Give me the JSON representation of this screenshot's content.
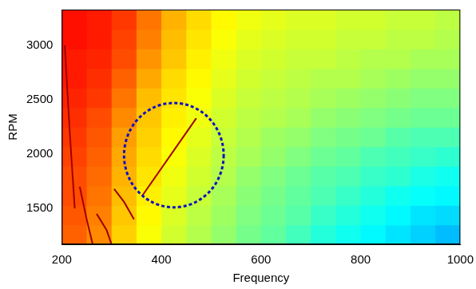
{
  "chart_data": {
    "type": "heatmap",
    "x_label": "Frequency",
    "y_label": "RPM",
    "xlim": [
      200,
      1000
    ],
    "ylim": [
      1170,
      3330
    ],
    "xticks": [
      200,
      400,
      600,
      800,
      1000
    ],
    "yticks": [
      1500,
      2000,
      2500,
      3000
    ],
    "grid": false,
    "tick_labels": true,
    "x_edges": [
      200,
      250,
      300,
      350,
      400,
      450,
      500,
      550,
      600,
      650,
      700,
      750,
      800,
      850,
      900,
      950,
      1000
    ],
    "y_edges": [
      1170,
      1350,
      1530,
      1710,
      1890,
      2070,
      2250,
      2430,
      2610,
      2790,
      2970,
      3150,
      3330
    ],
    "clim": [
      0,
      10
    ],
    "cells": [
      [
        7.8,
        7.4,
        6.7,
        6.2,
        5.8,
        5.5,
        5.2,
        4.9,
        4.7,
        4.4,
        4.1,
        3.9,
        3.7,
        3.5,
        3.3,
        3.1
      ],
      [
        7.9,
        7.5,
        6.8,
        6.3,
        5.9,
        5.6,
        5.3,
        5.0,
        4.8,
        4.6,
        4.3,
        4.1,
        3.9,
        3.7,
        3.5,
        3.4
      ],
      [
        8.0,
        7.6,
        6.9,
        6.4,
        6.0,
        5.7,
        5.4,
        5.1,
        4.9,
        4.7,
        4.5,
        4.3,
        4.1,
        3.9,
        3.8,
        3.7
      ],
      [
        8.0,
        7.7,
        7.0,
        6.5,
        6.1,
        5.8,
        5.5,
        5.2,
        5.0,
        4.8,
        4.6,
        4.5,
        4.3,
        4.2,
        4.0,
        3.9
      ],
      [
        8.1,
        7.8,
        7.1,
        6.6,
        6.2,
        5.9,
        5.6,
        5.4,
        5.2,
        5.0,
        4.8,
        4.7,
        4.5,
        4.4,
        4.3,
        4.2
      ],
      [
        8.2,
        7.9,
        7.2,
        6.7,
        6.3,
        6.0,
        5.7,
        5.5,
        5.3,
        5.2,
        5.0,
        4.9,
        4.8,
        4.6,
        4.5,
        4.5
      ],
      [
        8.3,
        8.0,
        7.4,
        6.8,
        6.4,
        6.1,
        5.8,
        5.6,
        5.5,
        5.4,
        5.2,
        5.1,
        5.0,
        4.9,
        4.8,
        4.8
      ],
      [
        8.4,
        8.2,
        7.6,
        6.9,
        6.5,
        6.2,
        5.9,
        5.7,
        5.6,
        5.5,
        5.4,
        5.3,
        5.2,
        5.1,
        5.0,
        5.0
      ],
      [
        8.5,
        8.3,
        7.8,
        7.1,
        6.6,
        6.3,
        6.0,
        5.8,
        5.7,
        5.6,
        5.5,
        5.5,
        5.4,
        5.3,
        5.2,
        5.2
      ],
      [
        8.5,
        8.4,
        8.0,
        7.3,
        6.8,
        6.4,
        6.1,
        5.9,
        5.8,
        5.7,
        5.7,
        5.6,
        5.5,
        5.5,
        5.4,
        5.4
      ],
      [
        8.6,
        8.5,
        8.1,
        7.5,
        6.9,
        6.5,
        6.2,
        6.0,
        5.9,
        5.8,
        5.8,
        5.7,
        5.7,
        5.6,
        5.6,
        5.5
      ],
      [
        8.6,
        8.5,
        8.2,
        7.6,
        7.0,
        6.6,
        6.3,
        6.1,
        6.0,
        5.9,
        5.9,
        5.8,
        5.8,
        5.7,
        5.7,
        5.6
      ]
    ],
    "lines": [
      {
        "x": [
          362,
          470
        ],
        "y": [
          1620,
          2330
        ],
        "color": "#a00000"
      },
      {
        "x": [
          345,
          325,
          305
        ],
        "y": [
          1400,
          1560,
          1680
        ],
        "color": "#a00000"
      },
      {
        "x": [
          300,
          290,
          270
        ],
        "y": [
          1170,
          1300,
          1450
        ],
        "color": "#a00000"
      },
      {
        "x": [
          262,
          250,
          236
        ],
        "y": [
          1170,
          1400,
          1700
        ],
        "color": "#a00000"
      },
      {
        "x": [
          226,
          216,
          206
        ],
        "y": [
          1500,
          2200,
          3000
        ],
        "color": "#a00000"
      }
    ],
    "highlight": {
      "x": 425,
      "y": 1990,
      "rx": 100,
      "ry": 480,
      "color": "#1010c0",
      "line_style": "dotted"
    }
  }
}
